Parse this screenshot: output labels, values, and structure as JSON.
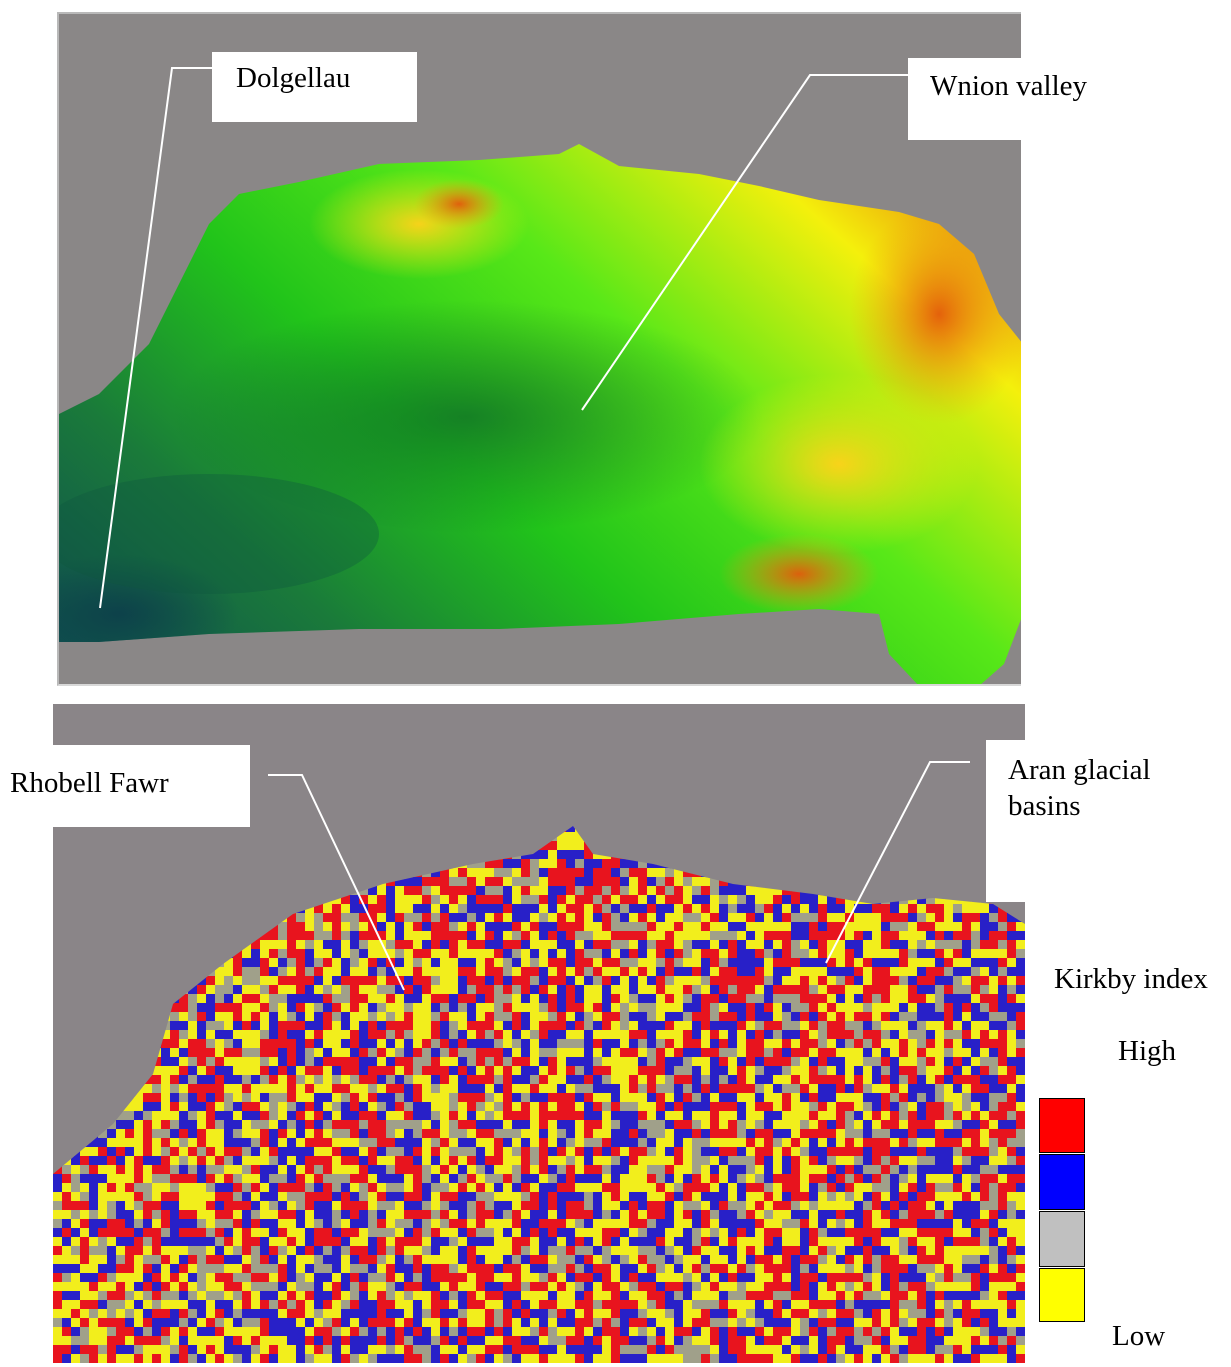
{
  "top_map": {
    "labels": {
      "dolgellau": "Dolgellau",
      "wnion_valley": "Wnion valley"
    },
    "colors": {
      "background": "#8a8787",
      "low": "#0e4a52",
      "mid": "#21c41a",
      "bright": "#58e818",
      "yellow": "#f4f00c",
      "high": "#e4540c"
    }
  },
  "bottom_map": {
    "labels": {
      "rhobell_fawr": "Rhobell Fawr",
      "aran_line1": "Aran glacial",
      "aran_line2": "basins"
    },
    "colors": {
      "background": "#8a8588",
      "class_high": "#e8141e",
      "class_2": "#2820c8",
      "class_3": "#a0a08a",
      "class_low": "#f2ee1c"
    }
  },
  "legend": {
    "title": "Kirkby index",
    "high_label": "High",
    "low_label": "Low",
    "swatches": [
      {
        "name": "red",
        "color": "#ff0000"
      },
      {
        "name": "blue",
        "color": "#0000ff"
      },
      {
        "name": "grey",
        "color": "#c0c0c0"
      },
      {
        "name": "yellow",
        "color": "#ffff00"
      }
    ]
  }
}
